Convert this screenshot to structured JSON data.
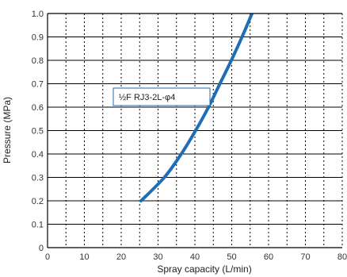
{
  "chart_data": {
    "type": "line",
    "xlabel": "Spray capacity (L/min)",
    "ylabel": "Pressure (MPa)",
    "xlim": [
      0,
      80
    ],
    "ylim": [
      0,
      1.0
    ],
    "x_ticks": [
      "0",
      "10",
      "20",
      "30",
      "40",
      "50",
      "60",
      "70",
      "80"
    ],
    "y_ticks": [
      "0",
      "0.1",
      "0.2",
      "0.3",
      "0.4",
      "0.5",
      "0.6",
      "0.7",
      "0.8",
      "0.9",
      "1.0"
    ],
    "grid": {
      "horizontal": "solid",
      "vertical": "dotted",
      "x_step": 5,
      "y_step": 0.1
    },
    "series": [
      {
        "name": "½F RJ3-2L-φ4",
        "color": "#1f6db5",
        "x": [
          25.4,
          31.7,
          36.3,
          40.2,
          43.7,
          46.8,
          49.9,
          52.8,
          55.5,
          58.0
        ],
        "y": [
          0.2,
          0.3,
          0.4,
          0.5,
          0.6,
          0.7,
          0.8,
          0.9,
          1.0,
          1.1
        ]
      }
    ],
    "legend": {
      "position": "middle-left",
      "label": "½F RJ3-2L-φ4"
    }
  }
}
